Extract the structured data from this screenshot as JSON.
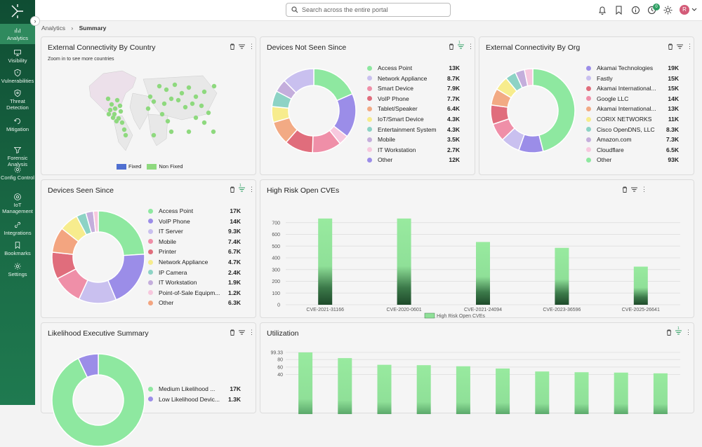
{
  "sidebar": {
    "items": [
      {
        "label": "Analytics",
        "icon": "bar-chart-icon"
      },
      {
        "label": "Visibility",
        "icon": "monitor-icon"
      },
      {
        "label": "Vulnerabilities",
        "icon": "shield-icon"
      },
      {
        "label": "Threat Detection",
        "icon": "alert-shield-icon"
      },
      {
        "label": "Mitigation",
        "icon": "mitigation-icon"
      },
      {
        "label": "Forensic Analysis",
        "icon": "filter-icon"
      },
      {
        "label": "Config Control",
        "icon": "gear-icon"
      },
      {
        "label": "IoT Management",
        "icon": "iot-icon"
      },
      {
        "label": "Integrations",
        "icon": "link-icon"
      },
      {
        "label": "Bookmarks",
        "icon": "bookmark-icon"
      },
      {
        "label": "Settings",
        "icon": "settings-icon"
      }
    ]
  },
  "topbar": {
    "search_placeholder": "Search across the entire portal",
    "notification_count": "0",
    "avatar_initial": "R"
  },
  "breadcrumb": {
    "root": "Analytics",
    "current": "Summary"
  },
  "cards": {
    "ext_country": {
      "title": "External Connectivity By Country",
      "hint": "Zoom in to see more countries",
      "legend": [
        "Fixed",
        "Non Fixed"
      ]
    },
    "not_seen": {
      "title": "Devices Not Seen Since",
      "filter_count": "1"
    },
    "ext_org": {
      "title": "External Connectivity By Org"
    },
    "seen_since": {
      "title": "Devices Seen Since",
      "filter_count": "1"
    },
    "cves": {
      "title": "High Risk Open CVEs"
    },
    "likelihood": {
      "title": "Likelihood Executive Summary"
    },
    "utilization": {
      "title": "Utilization",
      "filter_count": "1"
    }
  },
  "colors": {
    "green": "#8ee8a0",
    "purple": "#9b8de8",
    "lavender": "#c9c0ef",
    "pink": "#ef8fa8",
    "red": "#e06d7c",
    "orange": "#f2aa84",
    "yellow": "#f7ec8d",
    "teal": "#8dd3c5",
    "mauve": "#c4aedc",
    "lightpink": "#f7c8de",
    "salmon": "#f3a580"
  },
  "chart_data": [
    {
      "type": "pie",
      "id": "not_seen",
      "categories": [
        "Access Point",
        "Network Appliance",
        "Smart Device",
        "VoIP Phone",
        "Tablet/Speaker",
        "IoT/Smart Device",
        "Entertainment System",
        "Mobile",
        "IT Workstation",
        "Other"
      ],
      "values": [
        13000,
        8700,
        7900,
        7700,
        6400,
        4300,
        4300,
        3500,
        2700,
        12000
      ],
      "labels": [
        "13K",
        "8.7K",
        "7.9K",
        "7.7K",
        "6.4K",
        "4.3K",
        "4.3K",
        "3.5K",
        "2.7K",
        "12K"
      ],
      "colors": [
        "#8ee8a0",
        "#c9c0ef",
        "#ef8fa8",
        "#e06d7c",
        "#f2aa84",
        "#f7ec8d",
        "#8dd3c5",
        "#c4aedc",
        "#f7c8de",
        "#9b8de8"
      ],
      "order": [
        0,
        9,
        8,
        2,
        3,
        4,
        5,
        6,
        7,
        1
      ]
    },
    {
      "type": "pie",
      "id": "ext_org",
      "categories": [
        "Akamai Technologies",
        "Fastly",
        "Akamai International...",
        "Google LLC",
        "Akamai International...",
        "CORIX NETWORKS",
        "Cisco OpenDNS, LLC",
        "Amazon.com",
        "Cloudflare",
        "Other"
      ],
      "values": [
        19000,
        15000,
        15000,
        14000,
        13000,
        11000,
        8300,
        7300,
        6500,
        93000
      ],
      "labels": [
        "19K",
        "15K",
        "15K",
        "14K",
        "13K",
        "11K",
        "8.3K",
        "7.3K",
        "6.5K",
        "93K"
      ],
      "colors": [
        "#9b8de8",
        "#c9c0ef",
        "#e06d7c",
        "#ef8fa8",
        "#f2aa84",
        "#f7ec8d",
        "#8dd3c5",
        "#c4aedc",
        "#f7c8de",
        "#8ee8a0"
      ],
      "order": [
        9,
        0,
        1,
        3,
        2,
        4,
        5,
        6,
        7,
        8
      ]
    },
    {
      "type": "pie",
      "id": "seen_since",
      "categories": [
        "Access Point",
        "VoIP Phone",
        "IT Server",
        "Mobile",
        "Printer",
        "Network Appliance",
        "IP Camera",
        "IT Workstation",
        "Point-of-Sale Equipm...",
        "Other"
      ],
      "values": [
        17000,
        14000,
        9300,
        7400,
        6700,
        4700,
        2400,
        1900,
        1200,
        6300
      ],
      "labels": [
        "17K",
        "14K",
        "9.3K",
        "7.4K",
        "6.7K",
        "4.7K",
        "2.4K",
        "1.9K",
        "1.2K",
        "6.3K"
      ],
      "colors": [
        "#8ee8a0",
        "#9b8de8",
        "#c9c0ef",
        "#ef8fa8",
        "#e06d7c",
        "#f7ec8d",
        "#8dd3c5",
        "#c4aedc",
        "#f7c8de",
        "#f3a580"
      ],
      "order": [
        0,
        1,
        2,
        3,
        4,
        9,
        5,
        6,
        7,
        8
      ]
    },
    {
      "type": "bar",
      "id": "cves",
      "categories": [
        "CVE-2021-31166",
        "CVE-2020-0601",
        "CVE-2021-24094",
        "CVE-2023-36596",
        "CVE-2025-26641"
      ],
      "values": [
        735,
        735,
        535,
        485,
        325
      ],
      "ylim": [
        0,
        800
      ],
      "yticks": [
        "0",
        "100",
        "200",
        "300",
        "400",
        "500",
        "600",
        "700"
      ],
      "legend": "High Risk Open CVEs"
    },
    {
      "type": "pie",
      "id": "likelihood",
      "categories": [
        "Medium Likelihood ...",
        "Low Likelihood Devic..."
      ],
      "values": [
        17000,
        1300
      ],
      "labels": [
        "17K",
        "1.3K"
      ],
      "colors": [
        "#8ee8a0",
        "#9b8de8"
      ]
    },
    {
      "type": "bar",
      "id": "utilization",
      "values": [
        99.33,
        84,
        66,
        65,
        62,
        56,
        48,
        46,
        45,
        43
      ],
      "ylim": [
        0,
        99.33
      ],
      "yticks": [
        "99.33",
        "80",
        "60",
        "40"
      ]
    }
  ]
}
